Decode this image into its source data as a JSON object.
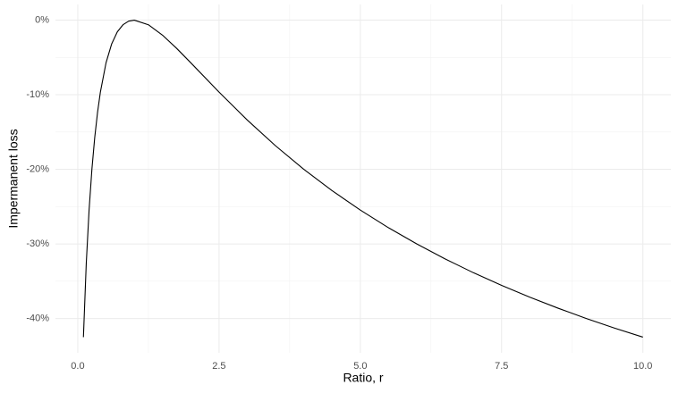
{
  "chart_data": {
    "type": "line",
    "x_label": "Ratio, r",
    "y_label": "Impermanent loss",
    "x": [
      0.1,
      0.15,
      0.2,
      0.25,
      0.3,
      0.35,
      0.4,
      0.5,
      0.6,
      0.7,
      0.8,
      0.9,
      1.0,
      1.25,
      1.5,
      1.75,
      2,
      2.5,
      3,
      3.5,
      4,
      4.5,
      5,
      5.5,
      6,
      6.5,
      7,
      7.5,
      8,
      8.5,
      9,
      9.5,
      10
    ],
    "series": [
      {
        "color": "#000000",
        "values": [
          -42.5,
          -32.64,
          -25.46,
          -20.0,
          -15.73,
          -12.35,
          -9.65,
          -5.72,
          -3.18,
          -1.57,
          -0.62,
          -0.14,
          0,
          -0.62,
          -2.02,
          -3.79,
          -5.72,
          -9.65,
          -13.4,
          -16.85,
          -20.0,
          -22.86,
          -25.46,
          -27.84,
          -30.01,
          -32.01,
          -33.86,
          -35.56,
          -37.15,
          -38.62,
          -40.0,
          -41.29,
          -42.5
        ]
      }
    ],
    "xlim": [
      -0.395,
      10.495
    ],
    "ylim": [
      -44.6,
      2.1
    ],
    "xticks": [
      {
        "value": 0,
        "label": "0.0"
      },
      2.5,
      {
        "value": 5,
        "label": "5.0"
      },
      7.5,
      {
        "value": 10,
        "label": "10.0"
      }
    ],
    "yticks": [
      {
        "value": -40,
        "label": "-40%"
      },
      {
        "value": -30,
        "label": "-30%"
      },
      {
        "value": -20,
        "label": "-20%"
      },
      {
        "value": -10,
        "label": "-10%"
      },
      {
        "value": 0,
        "label": "0%"
      }
    ],
    "grid": true
  }
}
